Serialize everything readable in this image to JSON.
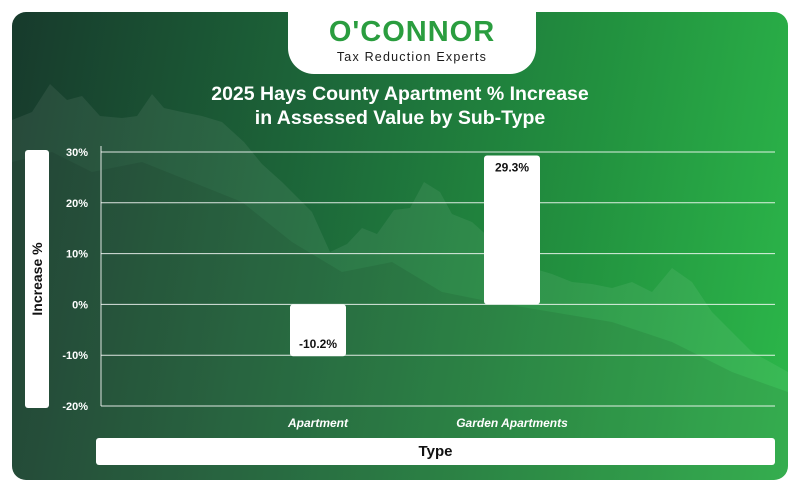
{
  "brand": {
    "name": "O'CONNOR",
    "tagline": "Tax Reduction Experts"
  },
  "colors": {
    "brand_green": "#2a9d3f",
    "bar": "#ffffff",
    "background_dark": "#173a2c",
    "background_light": "#2cb84a"
  },
  "chart_data": {
    "type": "bar",
    "title": "2025 Hays County Apartment % Increase in Assessed Value by Sub-Type",
    "title_lines": [
      "2025 Hays County Apartment % Increase",
      "in Assessed Value by Sub-Type"
    ],
    "xlabel": "Type",
    "ylabel": "Increase %",
    "categories": [
      "Apartment",
      "Garden Apartments"
    ],
    "values": [
      -10.2,
      29.3
    ],
    "data_labels": [
      "-10.2%",
      "29.3%"
    ],
    "ylim": [
      -20,
      30
    ],
    "yticks": [
      30,
      20,
      10,
      0,
      -10,
      -20
    ],
    "ytick_labels": [
      "30%",
      "20%",
      "10%",
      "0%",
      "-10%",
      "-20%"
    ],
    "grid": true,
    "legend": "none"
  }
}
